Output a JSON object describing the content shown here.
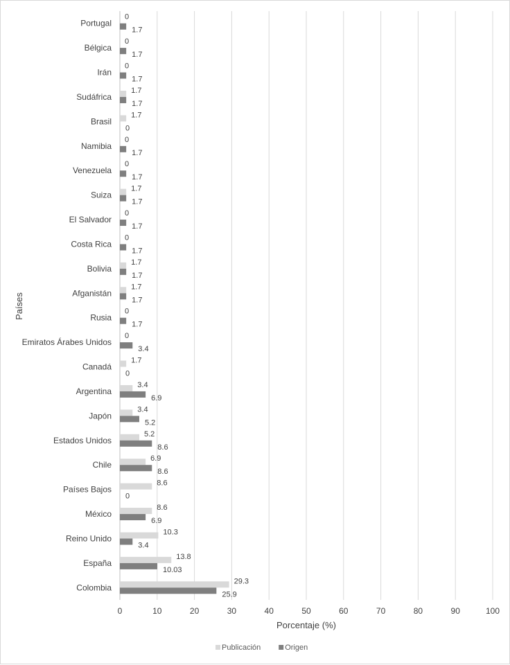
{
  "chart_data": {
    "type": "bar",
    "orientation": "horizontal",
    "categories": [
      "Portugal",
      "Bélgica",
      "Irán",
      "Sudáfrica",
      "Brasil",
      "Namibia",
      "Venezuela",
      "Suiza",
      "El Salvador",
      "Costa Rica",
      "Bolivia",
      "Afganistán",
      "Rusia",
      "Emiratos Árabes Unidos",
      "Canadá",
      "Argentina",
      "Japón",
      "Estados Unidos",
      "Chile",
      "Países Bajos",
      "México",
      "Reino Unido",
      "España",
      "Colombia"
    ],
    "series": [
      {
        "name": "Publicación",
        "color": "#d9d9d9",
        "values": [
          0,
          0,
          0,
          1.7,
          1.7,
          0,
          0,
          1.7,
          0,
          0,
          1.7,
          1.7,
          0,
          0,
          1.7,
          3.4,
          3.4,
          5.2,
          6.9,
          8.6,
          8.6,
          10.3,
          13.8,
          29.3
        ],
        "labels": [
          "0",
          "0",
          "0",
          "1.7",
          "1.7",
          "0",
          "0",
          "1.7",
          "0",
          "0",
          "1.7",
          "1.7",
          "0",
          "0",
          "1.7",
          "3.4",
          "3.4",
          "5.2",
          "6.9",
          "8.6",
          "8.6",
          "10.3",
          "13.8",
          "29.3"
        ]
      },
      {
        "name": "Origen",
        "color": "#7f7f7f",
        "values": [
          1.7,
          1.7,
          1.7,
          1.7,
          0,
          1.7,
          1.7,
          1.7,
          1.7,
          1.7,
          1.7,
          1.7,
          1.7,
          3.4,
          0,
          6.9,
          5.2,
          8.6,
          8.6,
          0,
          6.9,
          3.4,
          10.03,
          25.9
        ],
        "labels": [
          "1.7",
          "1.7",
          "1.7",
          "1.7",
          "0",
          "1.7",
          "1.7",
          "1.7",
          "1.7",
          "1.7",
          "1.7",
          "1.7",
          "1.7",
          "3.4",
          "0",
          "6.9",
          "5.2",
          "8.6",
          "8.6",
          "0",
          "6.9",
          "3.4",
          "10.03",
          "25.9"
        ]
      }
    ],
    "xlabel": "Porcentaje (%)",
    "ylabel": "Países",
    "xlim": [
      0,
      100
    ],
    "xticks": [
      "0",
      "10",
      "20",
      "30",
      "40",
      "50",
      "60",
      "70",
      "80",
      "90",
      "100"
    ],
    "grid": "vertical",
    "legend_position": "bottom"
  }
}
